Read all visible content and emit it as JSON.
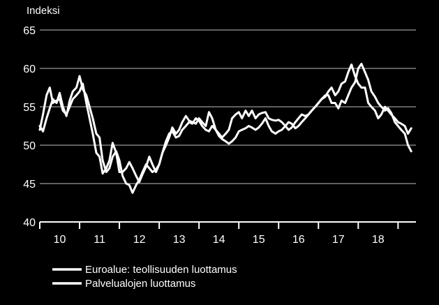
{
  "chart_data": {
    "type": "line",
    "ylabel": "Indeksi",
    "ylim": [
      40,
      65
    ],
    "yticks": [
      40,
      45,
      50,
      55,
      60,
      65
    ],
    "xlim": [
      2009.5,
      2018.95
    ],
    "x_tick_labels": [
      "10",
      "11",
      "12",
      "13",
      "14",
      "15",
      "16",
      "17",
      "18"
    ],
    "grid": "horizontal",
    "legend_position": "bottom-left",
    "colors": {
      "background": "#000000",
      "lines": "#ffffff",
      "grid": "#bfbfbf"
    },
    "series": [
      {
        "name": "Euroalue: teollisuuden luottamus",
        "x": [
          2009.5,
          2009.58,
          2009.67,
          2009.75,
          2009.83,
          2009.92,
          2010.0,
          2010.08,
          2010.17,
          2010.25,
          2010.33,
          2010.42,
          2010.5,
          2010.58,
          2010.67,
          2010.75,
          2010.83,
          2010.92,
          2011.0,
          2011.08,
          2011.17,
          2011.25,
          2011.33,
          2011.42,
          2011.5,
          2011.58,
          2011.67,
          2011.75,
          2011.83,
          2011.92,
          2012.0,
          2012.08,
          2012.17,
          2012.25,
          2012.33,
          2012.42,
          2012.5,
          2012.58,
          2012.67,
          2012.75,
          2012.83,
          2012.92,
          2013.0,
          2013.08,
          2013.17,
          2013.25,
          2013.33,
          2013.42,
          2013.5,
          2013.58,
          2013.67,
          2013.75,
          2013.83,
          2013.92,
          2014.0,
          2014.08,
          2014.17,
          2014.25,
          2014.33,
          2014.42,
          2014.5,
          2014.58,
          2014.67,
          2014.75,
          2014.83,
          2014.92,
          2015.0,
          2015.08,
          2015.17,
          2015.25,
          2015.33,
          2015.42,
          2015.5,
          2015.58,
          2015.67,
          2015.75,
          2015.83,
          2015.92,
          2016.0,
          2016.08,
          2016.17,
          2016.25,
          2016.33,
          2016.42,
          2016.5,
          2016.58,
          2016.67,
          2016.75,
          2016.83,
          2016.92,
          2017.0,
          2017.08,
          2017.17,
          2017.25,
          2017.33,
          2017.42,
          2017.5,
          2017.58,
          2017.67,
          2017.75,
          2017.83,
          2017.92,
          2018.0,
          2018.08,
          2018.17,
          2018.25,
          2018.33,
          2018.42,
          2018.5,
          2018.58,
          2018.67,
          2018.75,
          2018.83
        ],
        "values": [
          52.5,
          51.8,
          53.5,
          54.8,
          56.0,
          55.5,
          56.8,
          55.0,
          53.8,
          55.8,
          57.0,
          57.5,
          59.0,
          57.3,
          56.5,
          55.0,
          53.5,
          51.5,
          51.0,
          48.0,
          46.5,
          47.0,
          48.5,
          49.2,
          48.0,
          46.0,
          45.0,
          44.8,
          43.8,
          44.8,
          45.5,
          46.5,
          47.5,
          47.0,
          46.5,
          46.8,
          47.5,
          49.0,
          50.5,
          51.5,
          51.8,
          51.0,
          51.2,
          52.0,
          52.5,
          53.0,
          52.8,
          53.5,
          53.2,
          52.5,
          52.0,
          51.8,
          52.5,
          52.0,
          51.2,
          50.8,
          50.5,
          50.2,
          50.5,
          51.0,
          51.8,
          52.0,
          52.2,
          52.5,
          52.3,
          52.0,
          52.3,
          52.8,
          53.5,
          52.5,
          51.8,
          51.5,
          51.8,
          52.0,
          52.5,
          53.0,
          52.8,
          52.2,
          52.5,
          53.0,
          53.5,
          54.0,
          54.5,
          55.0,
          55.5,
          56.0,
          56.5,
          56.5,
          55.5,
          55.5,
          54.8,
          55.8,
          55.5,
          56.5,
          57.5,
          58.2,
          60.0,
          60.6,
          59.5,
          58.5,
          57.0,
          56.3,
          55.5,
          55.0,
          54.5,
          54.8,
          54.2,
          53.0,
          52.5,
          52.0,
          51.5,
          50.0,
          49.2
        ]
      },
      {
        "name": "Palvelualojen luottamus",
        "x": [
          2009.5,
          2009.58,
          2009.67,
          2009.75,
          2009.83,
          2009.92,
          2010.0,
          2010.08,
          2010.17,
          2010.25,
          2010.33,
          2010.42,
          2010.5,
          2010.58,
          2010.67,
          2010.75,
          2010.83,
          2010.92,
          2011.0,
          2011.08,
          2011.17,
          2011.25,
          2011.33,
          2011.42,
          2011.5,
          2011.58,
          2011.67,
          2011.75,
          2011.83,
          2011.92,
          2012.0,
          2012.08,
          2012.17,
          2012.25,
          2012.33,
          2012.42,
          2012.5,
          2012.58,
          2012.67,
          2012.75,
          2012.83,
          2012.92,
          2013.0,
          2013.08,
          2013.17,
          2013.25,
          2013.33,
          2013.42,
          2013.5,
          2013.58,
          2013.67,
          2013.75,
          2013.83,
          2013.92,
          2014.0,
          2014.08,
          2014.17,
          2014.25,
          2014.33,
          2014.42,
          2014.5,
          2014.58,
          2014.67,
          2014.75,
          2014.83,
          2014.92,
          2015.0,
          2015.08,
          2015.17,
          2015.25,
          2015.33,
          2015.42,
          2015.5,
          2015.58,
          2015.67,
          2015.75,
          2015.83,
          2015.92,
          2016.0,
          2016.08,
          2016.17,
          2016.25,
          2016.33,
          2016.42,
          2016.5,
          2016.58,
          2016.67,
          2016.75,
          2016.83,
          2016.92,
          2017.0,
          2017.08,
          2017.17,
          2017.25,
          2017.33,
          2017.42,
          2017.5,
          2017.58,
          2017.67,
          2017.75,
          2017.83,
          2017.92,
          2018.0,
          2018.08,
          2018.17,
          2018.25,
          2018.33,
          2018.42,
          2018.5,
          2018.58,
          2018.67,
          2018.75,
          2018.83
        ],
        "values": [
          52.0,
          54.0,
          56.5,
          57.5,
          55.5,
          55.8,
          56.0,
          54.5,
          54.0,
          55.0,
          56.0,
          56.5,
          57.0,
          58.0,
          55.5,
          53.5,
          51.5,
          49.0,
          48.5,
          46.3,
          47.0,
          48.0,
          50.3,
          49.0,
          46.5,
          46.5,
          47.0,
          47.8,
          47.0,
          46.0,
          45.2,
          46.2,
          47.2,
          48.5,
          47.5,
          46.5,
          47.5,
          49.0,
          50.0,
          51.0,
          52.3,
          51.5,
          52.0,
          53.0,
          53.8,
          53.2,
          53.0,
          52.8,
          53.5,
          53.0,
          52.5,
          54.3,
          53.5,
          52.0,
          51.5,
          51.0,
          51.5,
          52.0,
          53.5,
          54.0,
          54.3,
          53.5,
          54.5,
          53.8,
          54.5,
          53.5,
          54.0,
          54.2,
          54.3,
          53.5,
          53.3,
          53.2,
          53.3,
          53.0,
          52.5,
          52.0,
          52.3,
          53.0,
          53.5,
          54.0,
          53.8,
          54.0,
          54.5,
          55.0,
          55.5,
          56.0,
          56.3,
          57.0,
          57.5,
          56.5,
          57.0,
          58.0,
          58.3,
          59.5,
          60.5,
          59.0,
          58.0,
          57.5,
          57.5,
          55.5,
          55.0,
          54.5,
          53.5,
          54.0,
          55.0,
          54.5,
          54.0,
          53.5,
          53.0,
          52.8,
          52.5,
          51.5,
          52.2
        ]
      }
    ]
  }
}
